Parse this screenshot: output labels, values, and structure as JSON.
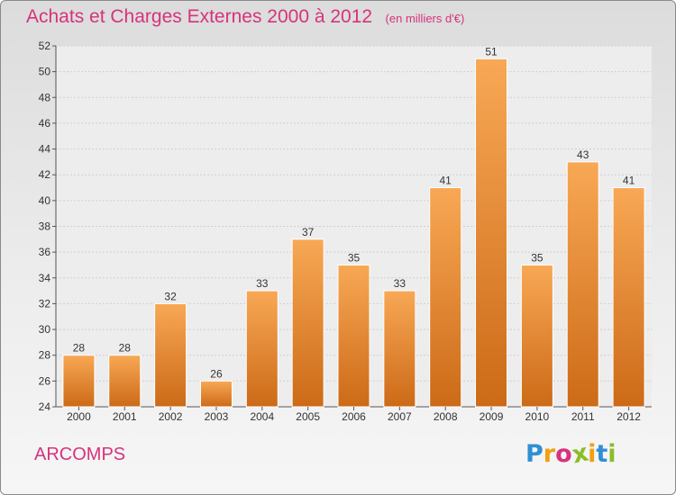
{
  "chart_data": {
    "type": "bar",
    "title": "Achats et Charges Externes 2000 à 2012",
    "subtitle": "(en milliers d'€)",
    "categories": [
      "2000",
      "2001",
      "2002",
      "2003",
      "2004",
      "2005",
      "2006",
      "2007",
      "2008",
      "2009",
      "2010",
      "2011",
      "2012"
    ],
    "values": [
      28,
      28,
      32,
      26,
      33,
      37,
      35,
      33,
      41,
      51,
      35,
      43,
      41
    ],
    "ylim": [
      24,
      52
    ],
    "yticks": [
      24,
      26,
      28,
      30,
      32,
      34,
      36,
      38,
      40,
      42,
      44,
      46,
      48,
      50,
      52
    ],
    "grid": true,
    "bar_color_top": "#f8a855",
    "bar_color_bottom": "#cc6a17"
  },
  "footer": {
    "commune": "ARCOMPS",
    "logo_text": "Proxiti",
    "logo_colors": [
      "#2e8fd6",
      "#f0a012",
      "#d6337c",
      "#8bbd2a",
      "#f0a012",
      "#2e8fd6",
      "#8bbd2a"
    ]
  }
}
